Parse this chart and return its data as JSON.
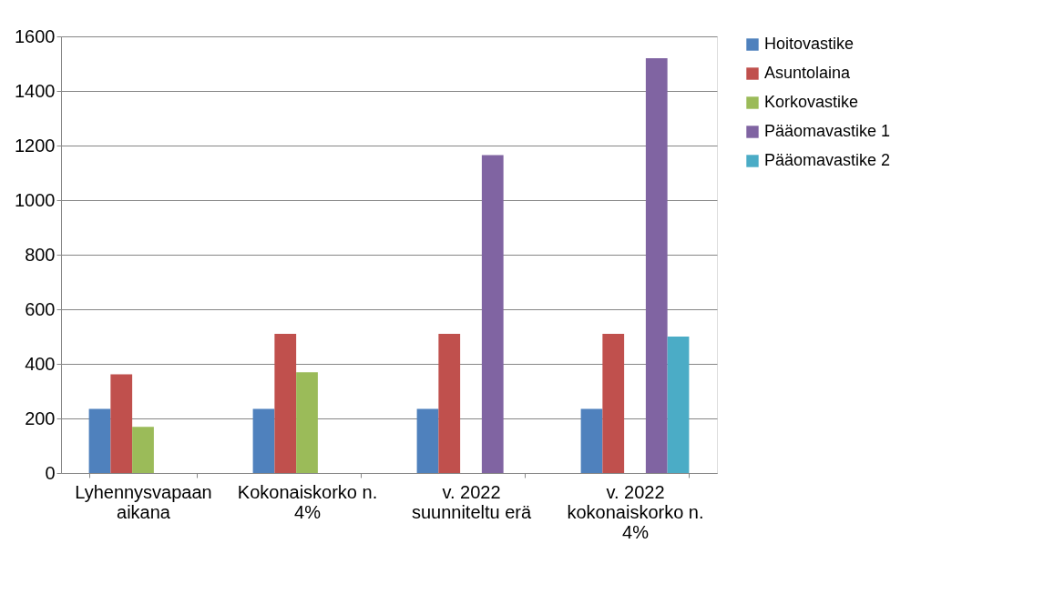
{
  "chart_data": {
    "type": "bar",
    "categories": [
      "Lyhennysvapaan aikana",
      "Kokonaiskorko n. 4%",
      "v. 2022 suunniteltu erä",
      "v. 2022 kokonaiskorko n. 4%"
    ],
    "series": [
      {
        "name": "Hoitovastike",
        "color": "#4f81bd",
        "values": [
          235,
          235,
          235,
          235
        ]
      },
      {
        "name": "Asuntolaina",
        "color": "#c0504d",
        "values": [
          362,
          510,
          510,
          510
        ]
      },
      {
        "name": "Korkovastike",
        "color": "#9bbb59",
        "values": [
          169,
          369,
          null,
          null
        ]
      },
      {
        "name": "Pääomavastike 1",
        "color": "#8064a2",
        "values": [
          null,
          null,
          1165,
          1520
        ]
      },
      {
        "name": "Pääomavastike 2",
        "color": "#4bacc6",
        "values": [
          null,
          null,
          null,
          500
        ]
      }
    ],
    "ylim": [
      0,
      1600
    ],
    "yticks": [
      0,
      200,
      400,
      600,
      800,
      1000,
      1200,
      1400,
      1600
    ],
    "grid": "y",
    "legend": "right"
  }
}
